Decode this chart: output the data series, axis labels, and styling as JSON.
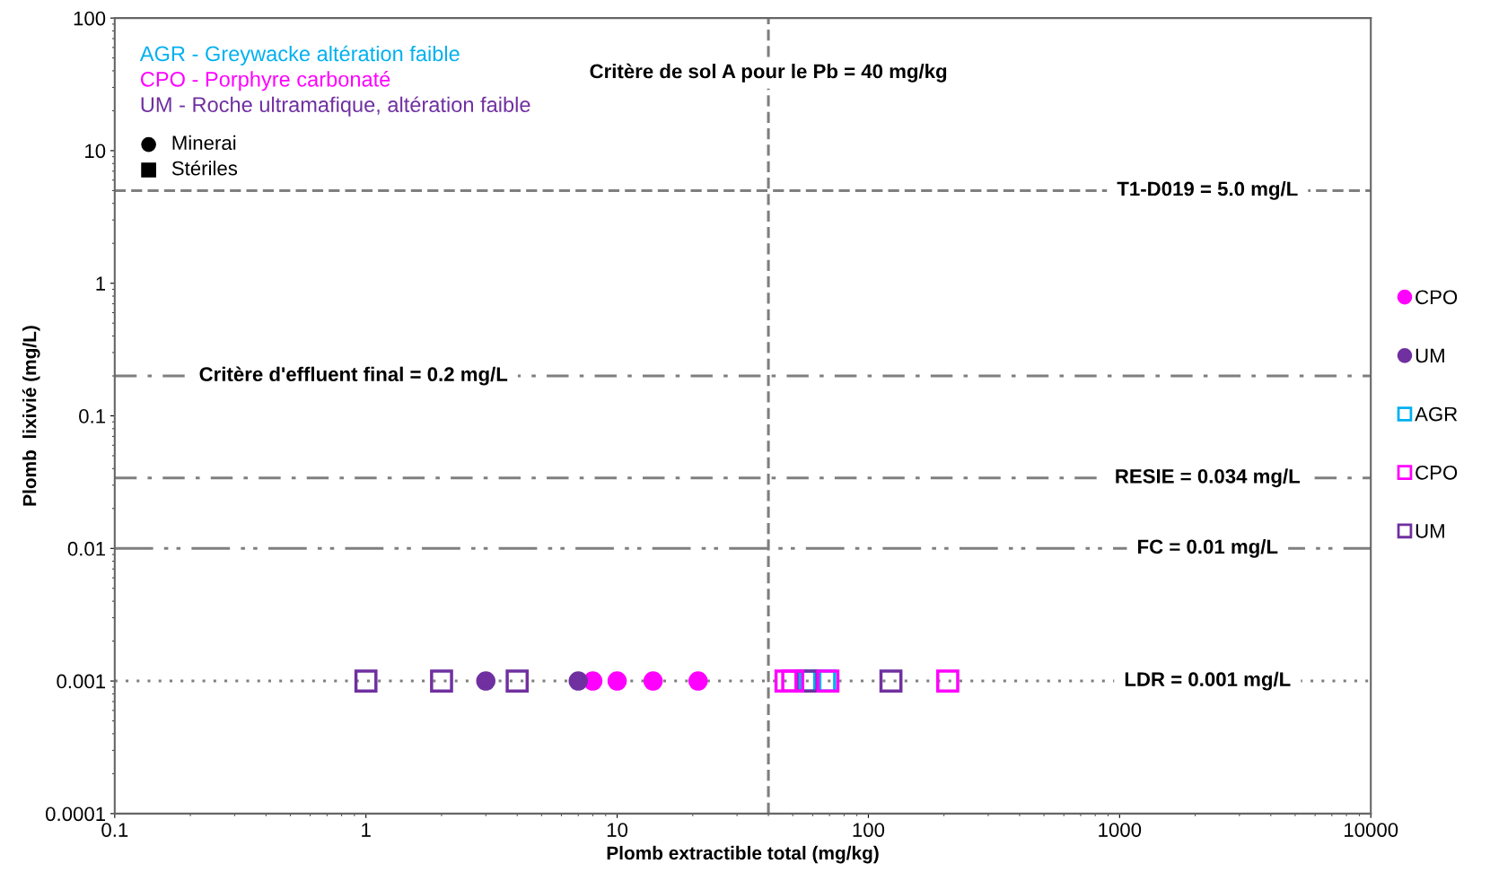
{
  "chart_data": {
    "type": "scatter",
    "xlabel": "Plomb extractible total (mg/kg)",
    "ylabel": "Plomb  lixivié (mg/L)",
    "log": "xy",
    "xlim": [
      0.1,
      10000
    ],
    "xticks": [
      0.1,
      1,
      10,
      100,
      1000,
      10000
    ],
    "ylim": [
      0.0001,
      100
    ],
    "yticks": [
      0.0001,
      0.001,
      0.01,
      0.1,
      1,
      10,
      100
    ],
    "grid": false,
    "legend": "right",
    "series": [
      {
        "name": "CPO",
        "color": "#ff00ff",
        "marker": "circle",
        "x": [
          8.0,
          10,
          13.9,
          21
        ],
        "values": [
          0.001,
          0.001,
          0.001,
          0.001
        ]
      },
      {
        "name": "UM",
        "color": "#7030a0",
        "marker": "circle",
        "x": [
          3.0,
          7.0
        ],
        "values": [
          0.001,
          0.001
        ]
      },
      {
        "name": "AGR",
        "color": "#00b0f0",
        "marker": "square",
        "x": [
          58.5,
          67
        ],
        "values": [
          0.001,
          0.001
        ]
      },
      {
        "name": "CPO",
        "color": "#ff00ff",
        "marker": "square",
        "x": [
          47,
          50,
          69,
          207
        ],
        "values": [
          0.001,
          0.001,
          0.001,
          0.001
        ]
      },
      {
        "name": "UM",
        "color": "#7030a0",
        "marker": "square",
        "x": [
          1.0,
          2.0,
          4.0,
          57,
          123
        ],
        "values": [
          0.001,
          0.001,
          0.001,
          0.001,
          0.001
        ]
      }
    ],
    "ref_lines": [
      {
        "axis": "x",
        "value": 40,
        "label": "Critère de sol A pour le Pb = 40 mg/kg",
        "color": "#7f7f7f",
        "line_style": "dashed"
      },
      {
        "axis": "y",
        "value": 5,
        "label": "T1-D019 = 5.0 mg/L",
        "color": "#7f7f7f",
        "line_style": "dashed"
      },
      {
        "axis": "y",
        "value": 0.2,
        "label": "Critère d'effluent final = 0.2 mg/L",
        "color": "#7f7f7f",
        "line_style": "dashdot"
      },
      {
        "axis": "y",
        "value": 0.034,
        "label": "RESIE = 0.034 mg/L",
        "color": "#7f7f7f",
        "line_style": "dashdot"
      },
      {
        "axis": "y",
        "value": 0.01,
        "label": "FC = 0.01 mg/L",
        "color": "#7f7f7f",
        "line_style": "dashdotdot"
      },
      {
        "axis": "y",
        "value": 0.001,
        "label": "LDR = 0.001 mg/L",
        "color": "#7f7f7f",
        "line_style": "dotted"
      }
    ],
    "annotations": [
      "AGR - Greywacke altération faible",
      "CPO - Porphyre carbonaté",
      "UM - Roche ultramafique, altération faible",
      "Minerai",
      "Stériles"
    ]
  }
}
